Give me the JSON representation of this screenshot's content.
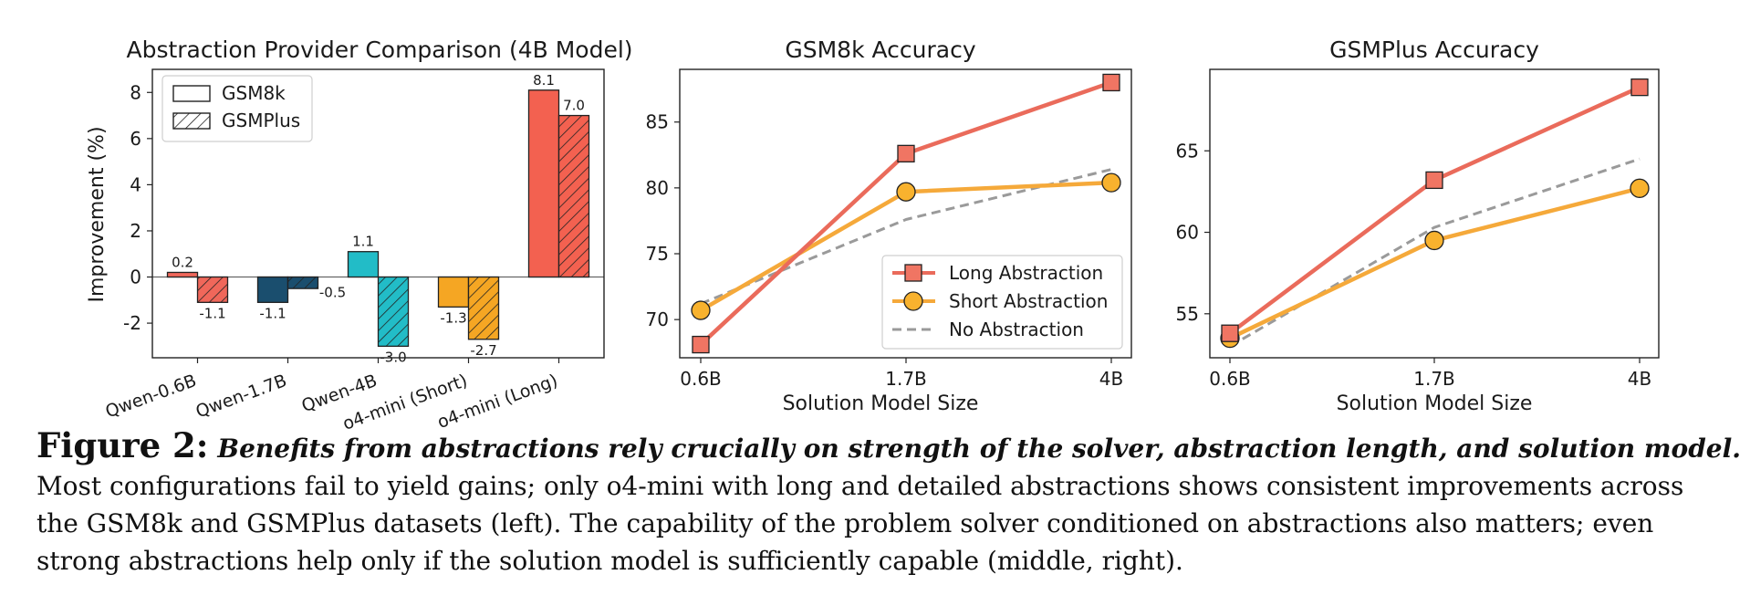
{
  "figure": {
    "label": "Figure 2:",
    "caption_bold": "Benefits from abstractions rely crucially on strength of the solver, abstraction length, and solution model.",
    "caption_lines": [
      "Most configurations fail to yield gains; only o4-mini with long and detailed abstractions shows consistent improvements across",
      "the GSM8k and GSMPlus datasets (left). The capability of the problem solver conditioned on abstractions also matters; even",
      "strong abstractions help only if the solution model is sufficiently capable (middle, right)."
    ]
  },
  "chart_data": [
    {
      "type": "bar",
      "title": "Abstraction Provider Comparison (4B Model)",
      "xlabel": "",
      "ylabel": "Improvement (%)",
      "ylim": [
        -3.5,
        9
      ],
      "yticks": [
        -2,
        0,
        2,
        4,
        6,
        8
      ],
      "grid": false,
      "legend_position": "top-left",
      "categories": [
        "Qwen-0.6B",
        "Qwen-1.7B",
        "Qwen-4B",
        "o4-mini (Short)",
        "o4-mini (Long)"
      ],
      "category_colors": [
        "#f0675a",
        "#1a4e6e",
        "#22bcc7",
        "#f5a623",
        "#f36150"
      ],
      "series": [
        {
          "name": "GSM8k",
          "hatch": false,
          "values": [
            0.2,
            -1.1,
            1.1,
            -1.3,
            8.1
          ],
          "labels": [
            "0.2",
            "-1.1",
            "1.1",
            "-1.3",
            "8.1"
          ]
        },
        {
          "name": "GSMPlus",
          "hatch": true,
          "values": [
            -1.1,
            -0.5,
            -3.0,
            -2.7,
            7.0
          ],
          "labels": [
            "-1.1",
            "-0.5",
            "-3.0",
            "-2.7",
            "7.0"
          ]
        }
      ]
    },
    {
      "type": "line",
      "title": "GSM8k Accuracy",
      "xlabel": "Solution Model Size",
      "ylabel": "",
      "x": [
        "0.6B",
        "1.7B",
        "4B"
      ],
      "ylim": [
        67.1,
        89.0
      ],
      "yticks": [
        70,
        75,
        80,
        85
      ],
      "grid": false,
      "legend_position": "bottom-right",
      "series": [
        {
          "name": "Long Abstraction",
          "color": "#ea6b5b",
          "marker": "square",
          "values": [
            68.1,
            82.6,
            88.0
          ]
        },
        {
          "name": "Short Abstraction",
          "color": "#f5a93a",
          "marker": "circle",
          "values": [
            70.7,
            79.7,
            80.4
          ]
        },
        {
          "name": "No Abstraction",
          "color": "#9a9a9a",
          "marker": "none",
          "dashed": true,
          "values": [
            71.2,
            77.6,
            81.4
          ]
        }
      ]
    },
    {
      "type": "line",
      "title": "GSMPlus Accuracy",
      "xlabel": "Solution Model Size",
      "ylabel": "",
      "x": [
        "0.6B",
        "1.7B",
        "4B"
      ],
      "ylim": [
        52.3,
        70.0
      ],
      "yticks": [
        55,
        60,
        65
      ],
      "grid": false,
      "legend_position": "none",
      "series": [
        {
          "name": "Long Abstraction",
          "color": "#ea6b5b",
          "marker": "square",
          "values": [
            53.8,
            63.2,
            68.9
          ]
        },
        {
          "name": "Short Abstraction",
          "color": "#f5a93a",
          "marker": "circle",
          "values": [
            53.5,
            59.5,
            62.7
          ]
        },
        {
          "name": "No Abstraction",
          "color": "#9a9a9a",
          "marker": "none",
          "dashed": true,
          "values": [
            53.0,
            60.3,
            64.5
          ]
        }
      ]
    }
  ]
}
